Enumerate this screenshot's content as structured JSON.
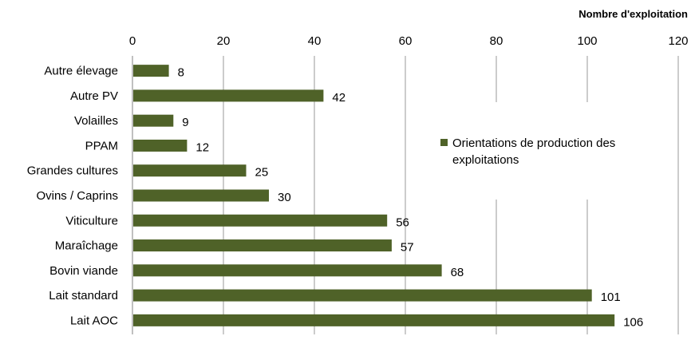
{
  "chart_data": {
    "type": "bar",
    "orientation": "horizontal",
    "xlabel": "Nombre d'exploitation",
    "xlim": [
      0,
      120
    ],
    "xticks": [
      0,
      20,
      40,
      60,
      80,
      100,
      120
    ],
    "grid": true,
    "legend_position": "right",
    "categories": [
      "Autre élevage",
      "Autre PV",
      "Volailles",
      "PPAM",
      "Grandes cultures",
      "Ovins / Caprins",
      "Viticulture",
      "Maraîchage",
      "Bovin viande",
      "Lait standard",
      "Lait AOC"
    ],
    "series": [
      {
        "name": "Orientations de production des exploitations",
        "values": [
          8,
          42,
          9,
          12,
          25,
          30,
          56,
          57,
          68,
          101,
          106
        ]
      }
    ],
    "bar_color": "#4f6228"
  }
}
